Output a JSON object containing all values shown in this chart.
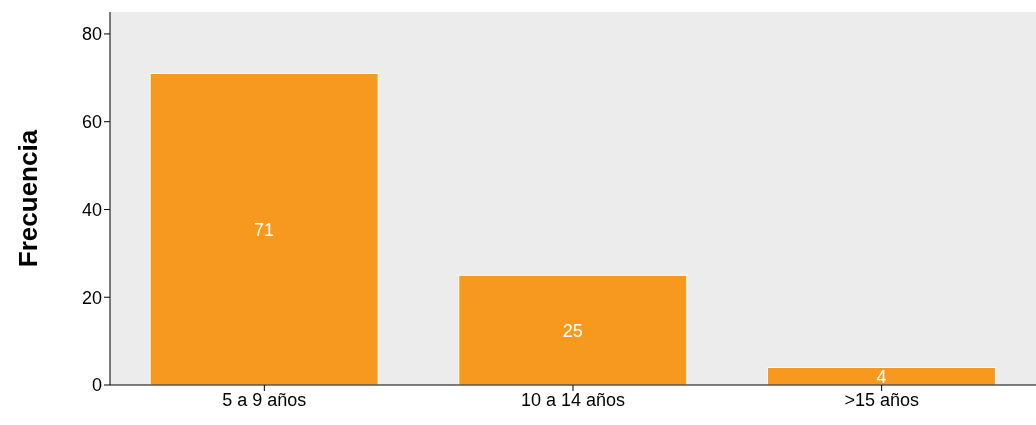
{
  "chart_data": {
    "type": "bar",
    "ylabel": "Frecuencia",
    "categories": [
      "5 a 9 años",
      "10 a 14 años",
      ">15 años"
    ],
    "values": [
      71,
      25,
      4
    ],
    "color": "#f7991f",
    "ylim": [
      0,
      85
    ],
    "yticks": [
      0,
      20,
      40,
      60,
      80
    ],
    "grid": false,
    "data_labels": true
  }
}
